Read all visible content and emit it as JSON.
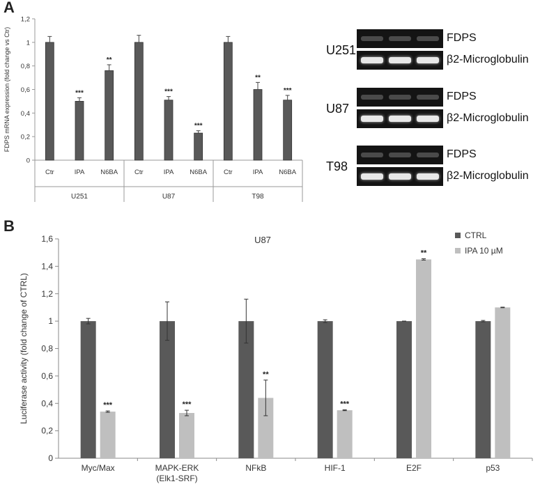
{
  "panel_a": {
    "letter": "A",
    "blots": [
      {
        "cell_line": "U251",
        "top_label": "FDPS",
        "bottom_label": "β2-Microglobulin"
      },
      {
        "cell_line": "U87",
        "top_label": "FDPS",
        "bottom_label": "β2-Microglobulin"
      },
      {
        "cell_line": "T98",
        "top_label": "FDPS",
        "bottom_label": "β2-Microglobulin"
      }
    ]
  },
  "panel_b": {
    "letter": "B"
  },
  "chart_data": [
    {
      "type": "bar",
      "title": "",
      "ylabel": "FDPS mRNA expression (fold change vs Ctr)",
      "xlabel": "",
      "ylim": [
        0,
        1.2
      ],
      "yticks": [
        "0",
        "0,2",
        "0,4",
        "0,6",
        "0,8",
        "1",
        "1,2"
      ],
      "groups": [
        "U251",
        "U87",
        "T98"
      ],
      "categories": [
        "Ctr",
        "IPA",
        "N6BA"
      ],
      "values": [
        [
          1.0,
          0.5,
          0.76
        ],
        [
          1.0,
          0.51,
          0.23
        ],
        [
          1.0,
          0.6,
          0.51
        ]
      ],
      "errors": [
        [
          0.05,
          0.03,
          0.05
        ],
        [
          0.06,
          0.03,
          0.02
        ],
        [
          0.05,
          0.06,
          0.04
        ]
      ],
      "significance": [
        [
          "",
          "***",
          "**"
        ],
        [
          "",
          "***",
          "***"
        ],
        [
          "",
          "**",
          "***"
        ]
      ],
      "bar_color": "#595959",
      "grid": false
    },
    {
      "type": "bar",
      "title": "U87",
      "ylabel": "Luciferase activity (fold change of CTRL)",
      "xlabel": "",
      "ylim": [
        0,
        1.6
      ],
      "yticks": [
        "0",
        "0,2",
        "0,4",
        "0,6",
        "0,8",
        "1",
        "1,2",
        "1,4",
        "1,6"
      ],
      "categories": [
        [
          "Myc/Max"
        ],
        [
          "MAPK-ERK",
          "(Elk1-SRF)"
        ],
        [
          "NFkB"
        ],
        [
          "HIF-1"
        ],
        [
          "E2F"
        ],
        [
          "p53"
        ]
      ],
      "series": [
        {
          "name": "CTRL",
          "color": "#595959",
          "values": [
            1.0,
            1.0,
            1.0,
            1.0,
            1.0,
            1.0
          ],
          "errors": [
            0.02,
            0.14,
            0.16,
            0.01,
            0.0,
            0.005
          ]
        },
        {
          "name": "IPA 10 µM",
          "color": "#bfbfbf",
          "values": [
            0.34,
            0.33,
            0.44,
            0.35,
            1.45,
            1.1
          ],
          "errors": [
            0.005,
            0.02,
            0.13,
            0.003,
            0.005,
            0.002
          ]
        }
      ],
      "significance": [
        "***",
        "***",
        "**",
        "***",
        "**",
        ""
      ],
      "legend": "top-right",
      "grid": false
    }
  ]
}
